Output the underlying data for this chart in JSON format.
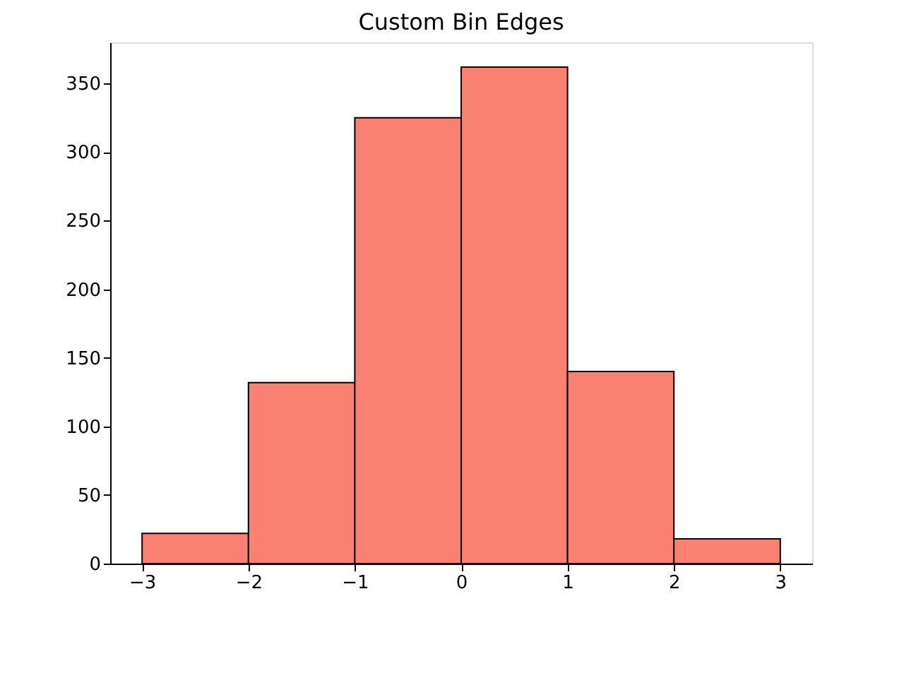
{
  "chart_data": {
    "type": "histogram",
    "title": "Custom Bin Edges",
    "bins": [
      -3,
      -2,
      -1,
      0,
      1,
      2,
      3
    ],
    "values": [
      22,
      132,
      325,
      362,
      140,
      18
    ],
    "color": "#fa8072",
    "xlim": [
      -3.3,
      3.3
    ],
    "xticks": [
      -3,
      -2,
      -1,
      0,
      1,
      2,
      3
    ],
    "ylim": [
      0,
      380
    ],
    "yticks": [
      0,
      50,
      100,
      150,
      200,
      250,
      300,
      350
    ],
    "grid": false
  }
}
